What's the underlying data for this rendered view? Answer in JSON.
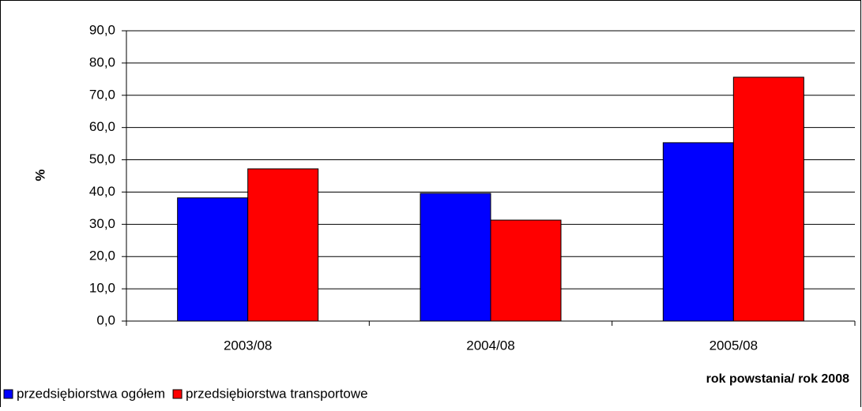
{
  "chart_data": {
    "type": "bar",
    "ylabel": "%",
    "xlabel": "rok powstania/ rok 2008",
    "categories": [
      "2003/08",
      "2004/08",
      "2005/08"
    ],
    "series": [
      {
        "name": "przedsiębiorstwa ogółem",
        "color": "#0000ff",
        "values": [
          38.2,
          39.6,
          55.3
        ]
      },
      {
        "name": "przedsiębiorstwa transportowe",
        "color": "#ff0000",
        "values": [
          47.2,
          31.3,
          75.6
        ]
      }
    ],
    "ylim": [
      0,
      90
    ],
    "yticks": [
      {
        "value": 0,
        "label": "0,0"
      },
      {
        "value": 10,
        "label": "10,0"
      },
      {
        "value": 20,
        "label": "20,0"
      },
      {
        "value": 30,
        "label": "30,0"
      },
      {
        "value": 40,
        "label": "40,0"
      },
      {
        "value": 50,
        "label": "50,0"
      },
      {
        "value": 60,
        "label": "60,0"
      },
      {
        "value": 70,
        "label": "70,0"
      },
      {
        "value": 80,
        "label": "80,0"
      },
      {
        "value": 90,
        "label": "90,0"
      }
    ],
    "grid": true
  }
}
